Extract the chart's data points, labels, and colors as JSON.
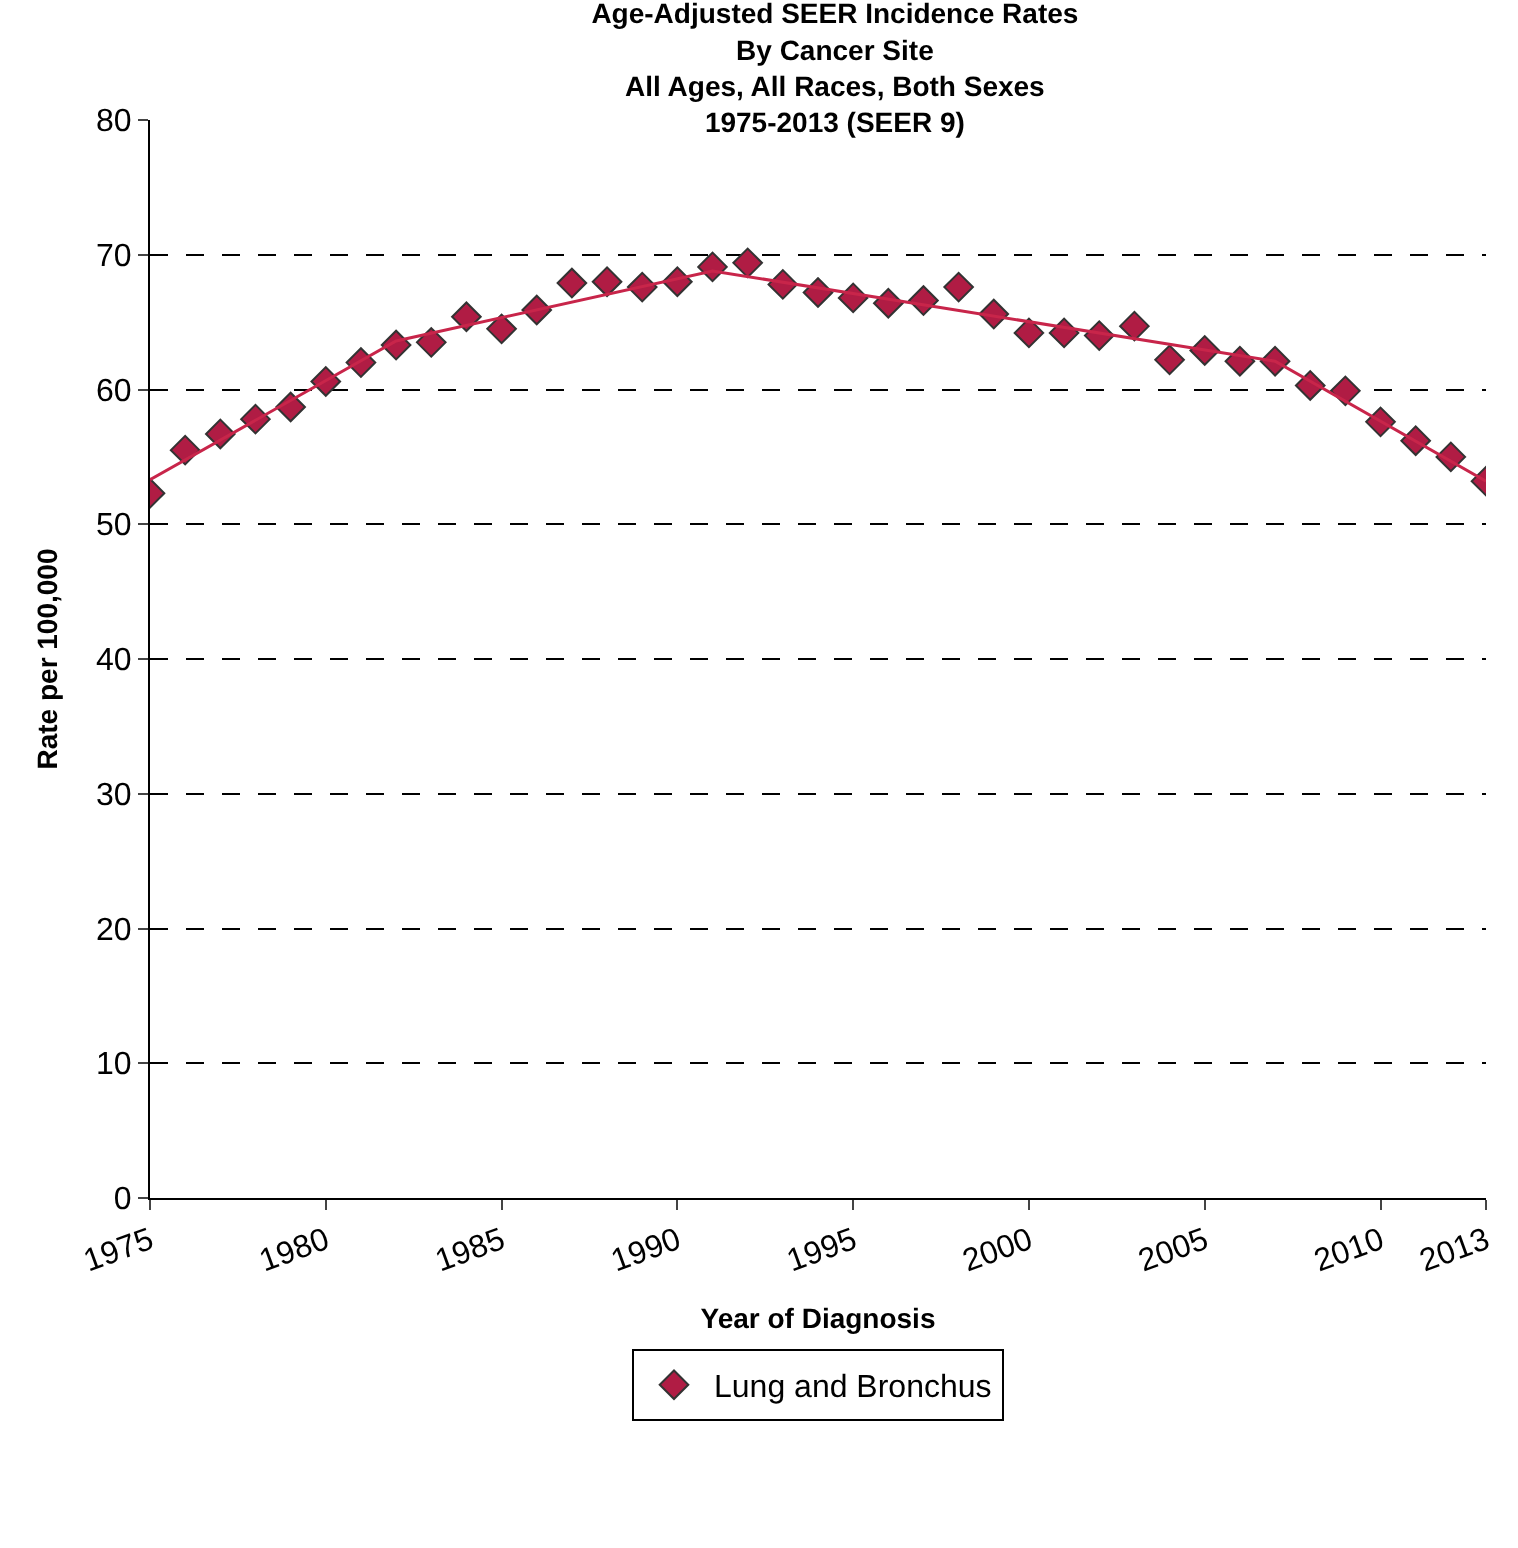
{
  "chart_data": {
    "type": "scatter",
    "title": "Age-Adjusted SEER Incidence Rates\nBy Cancer Site\nAll Ages, All Races, Both Sexes\n1975-2013 (SEER 9)",
    "xlabel": "Year of Diagnosis",
    "ylabel": "Rate per 100,000",
    "series": [
      {
        "name": "Lung and Bronchus",
        "marker": "diamond",
        "color": "#b01c44",
        "x": [
          1975,
          1976,
          1977,
          1978,
          1979,
          1980,
          1981,
          1982,
          1983,
          1984,
          1985,
          1986,
          1987,
          1988,
          1989,
          1990,
          1991,
          1992,
          1993,
          1994,
          1995,
          1996,
          1997,
          1998,
          1999,
          2000,
          2001,
          2002,
          2003,
          2004,
          2005,
          2006,
          2007,
          2008,
          2009,
          2010,
          2011,
          2012,
          2013
        ],
        "values": [
          52.3,
          55.5,
          56.7,
          57.8,
          58.7,
          60.6,
          62.0,
          63.3,
          63.5,
          65.4,
          64.5,
          65.9,
          67.9,
          68.0,
          67.6,
          68.0,
          69.1,
          69.4,
          67.8,
          67.2,
          66.8,
          66.4,
          66.6,
          67.6,
          65.6,
          64.2,
          64.2,
          64.0,
          64.7,
          62.2,
          62.9,
          62.1,
          62.1,
          60.3,
          59.9,
          57.6,
          56.2,
          55.0,
          53.2
        ]
      },
      {
        "type": "line",
        "marker": "none",
        "color": "#c8254a",
        "x": [
          1975,
          1982,
          1991,
          2007,
          2013
        ],
        "values": [
          53.3,
          63.6,
          68.8,
          62.1,
          53.2
        ]
      }
    ],
    "xlim": [
      1975,
      2013
    ],
    "xticks": [
      1975,
      1980,
      1985,
      1990,
      1995,
      2000,
      2005,
      2010,
      2013
    ],
    "ylim": [
      0,
      80
    ],
    "yticks": [
      0,
      10,
      20,
      30,
      40,
      50,
      60,
      70,
      80
    ],
    "grid": "y",
    "legend": "bottom"
  }
}
